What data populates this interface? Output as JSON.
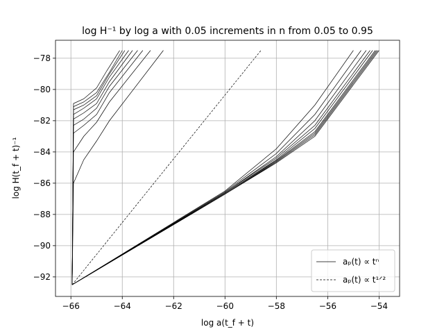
{
  "chart_data": {
    "type": "line",
    "title": "log H⁻¹ by log a with 0.05 increments in n from 0.05 to 0.95",
    "x_label": "log a(t_f + t)",
    "y_label": "log H(t_f + t)⁻¹",
    "xlim": [
      -66.6,
      -53.2
    ],
    "ylim": [
      -93.25,
      -76.85
    ],
    "xticks": [
      {
        "value": -66,
        "label": "−66"
      },
      {
        "value": -64,
        "label": "−64"
      },
      {
        "value": -62,
        "label": "−62"
      },
      {
        "value": -60,
        "label": "−60"
      },
      {
        "value": -58,
        "label": "−58"
      },
      {
        "value": -56,
        "label": "−56"
      },
      {
        "value": -54,
        "label": "−54"
      }
    ],
    "yticks": [
      {
        "value": -92,
        "label": "−92"
      },
      {
        "value": -90,
        "label": "−90"
      },
      {
        "value": -88,
        "label": "−88"
      },
      {
        "value": -86,
        "label": "−86"
      },
      {
        "value": -84,
        "label": "−84"
      },
      {
        "value": -82,
        "label": "−82"
      },
      {
        "value": -80,
        "label": "−80"
      },
      {
        "value": -78,
        "label": "−78"
      }
    ],
    "grid": true,
    "legend_position": "lower right",
    "series": [
      {
        "name": "aₚ(t) ∝ tⁿ",
        "color": "#000000",
        "style": "solid",
        "x": [
          -65.95,
          -65.9,
          -65.5,
          -65,
          -64.6,
          -64.1
        ],
        "y": [
          -92.5,
          -80.9,
          -80.6,
          -79.9,
          -78.8,
          -77.5
        ]
      },
      {
        "color": "#000000",
        "style": "solid",
        "x": [
          -65.95,
          -65.9,
          -65.5,
          -65,
          -64.5,
          -64.0
        ],
        "y": [
          -92.5,
          -81.1,
          -80.8,
          -80.2,
          -78.9,
          -77.5
        ]
      },
      {
        "color": "#000000",
        "style": "solid",
        "x": [
          -65.95,
          -65.9,
          -65.5,
          -65,
          -64.5,
          -63.9
        ],
        "y": [
          -92.5,
          -81.3,
          -81.0,
          -80.4,
          -79.0,
          -77.5
        ]
      },
      {
        "color": "#000000",
        "style": "solid",
        "x": [
          -65.95,
          -65.9,
          -65.5,
          -65,
          -64.5,
          -63.75
        ],
        "y": [
          -92.5,
          -81.6,
          -81.2,
          -80.6,
          -79.2,
          -77.5
        ]
      },
      {
        "color": "#000000",
        "style": "solid",
        "x": [
          -65.95,
          -65.9,
          -65.5,
          -65,
          -64.5,
          -63.6
        ],
        "y": [
          -92.5,
          -81.9,
          -81.5,
          -80.9,
          -79.5,
          -77.5
        ]
      },
      {
        "color": "#000000",
        "style": "solid",
        "x": [
          -65.95,
          -65.9,
          -65.5,
          -65,
          -64.5,
          -63.4
        ],
        "y": [
          -92.5,
          -82.3,
          -81.9,
          -81.2,
          -79.8,
          -77.5
        ]
      },
      {
        "color": "#000000",
        "style": "solid",
        "x": [
          -65.95,
          -65.9,
          -65.5,
          -65,
          -64.5,
          -63.2
        ],
        "y": [
          -92.5,
          -82.8,
          -82.3,
          -81.6,
          -80.2,
          -77.5
        ]
      },
      {
        "color": "#000000",
        "style": "solid",
        "x": [
          -65.95,
          -65.9,
          -65.5,
          -65,
          -64.5,
          -62.9
        ],
        "y": [
          -92.5,
          -84.0,
          -83.0,
          -82.1,
          -80.8,
          -77.5
        ]
      },
      {
        "color": "#000000",
        "style": "solid",
        "x": [
          -65.95,
          -65.9,
          -65.5,
          -65,
          -64.5,
          -62.4
        ],
        "y": [
          -92.5,
          -86.0,
          -84.5,
          -83.3,
          -82.0,
          -77.5
        ]
      },
      {
        "color": "#000000",
        "style": "solid",
        "x": [
          -65.95,
          -60,
          -58,
          -56.5,
          -55.0
        ],
        "y": [
          -92.5,
          -86.5,
          -83.8,
          -81.0,
          -77.5
        ]
      },
      {
        "color": "#000000",
        "style": "solid",
        "x": [
          -65.95,
          -60,
          -58,
          -56.5,
          -54.7
        ],
        "y": [
          -92.5,
          -86.55,
          -84.1,
          -81.6,
          -77.5
        ]
      },
      {
        "color": "#000000",
        "style": "solid",
        "x": [
          -65.95,
          -60,
          -58,
          -56.5,
          -54.5
        ],
        "y": [
          -92.5,
          -86.6,
          -84.3,
          -82.0,
          -77.5
        ]
      },
      {
        "color": "#000000",
        "style": "solid",
        "x": [
          -65.95,
          -60,
          -58,
          -56.5,
          -54.35
        ],
        "y": [
          -92.5,
          -86.6,
          -84.4,
          -82.3,
          -77.5
        ]
      },
      {
        "color": "#000000",
        "style": "solid",
        "x": [
          -65.95,
          -60,
          -58,
          -56.5,
          -54.25
        ],
        "y": [
          -92.5,
          -86.65,
          -84.5,
          -82.5,
          -77.5
        ]
      },
      {
        "color": "#000000",
        "style": "solid",
        "x": [
          -65.95,
          -60,
          -58,
          -56.5,
          -54.15
        ],
        "y": [
          -92.5,
          -86.65,
          -84.55,
          -82.7,
          -77.5
        ]
      },
      {
        "color": "#000000",
        "style": "solid",
        "x": [
          -65.95,
          -60,
          -58,
          -56.5,
          -54.1
        ],
        "y": [
          -92.5,
          -86.7,
          -84.6,
          -82.8,
          -77.5
        ]
      },
      {
        "color": "#000000",
        "style": "solid",
        "x": [
          -65.95,
          -60,
          -58,
          -56.5,
          -54.05
        ],
        "y": [
          -92.5,
          -86.7,
          -84.65,
          -82.9,
          -77.5
        ]
      },
      {
        "color": "#000000",
        "style": "solid",
        "x": [
          -65.95,
          -60,
          -58,
          -56.5,
          -54.0
        ],
        "y": [
          -92.5,
          -86.7,
          -84.7,
          -83.0,
          -77.5
        ]
      },
      {
        "name": "aₚ(t) ∝ t¹ᐟ²",
        "color": "#000000",
        "style": "dashed",
        "x": [
          -65.95,
          -58.6
        ],
        "y": [
          -92.5,
          -77.5
        ]
      }
    ]
  }
}
